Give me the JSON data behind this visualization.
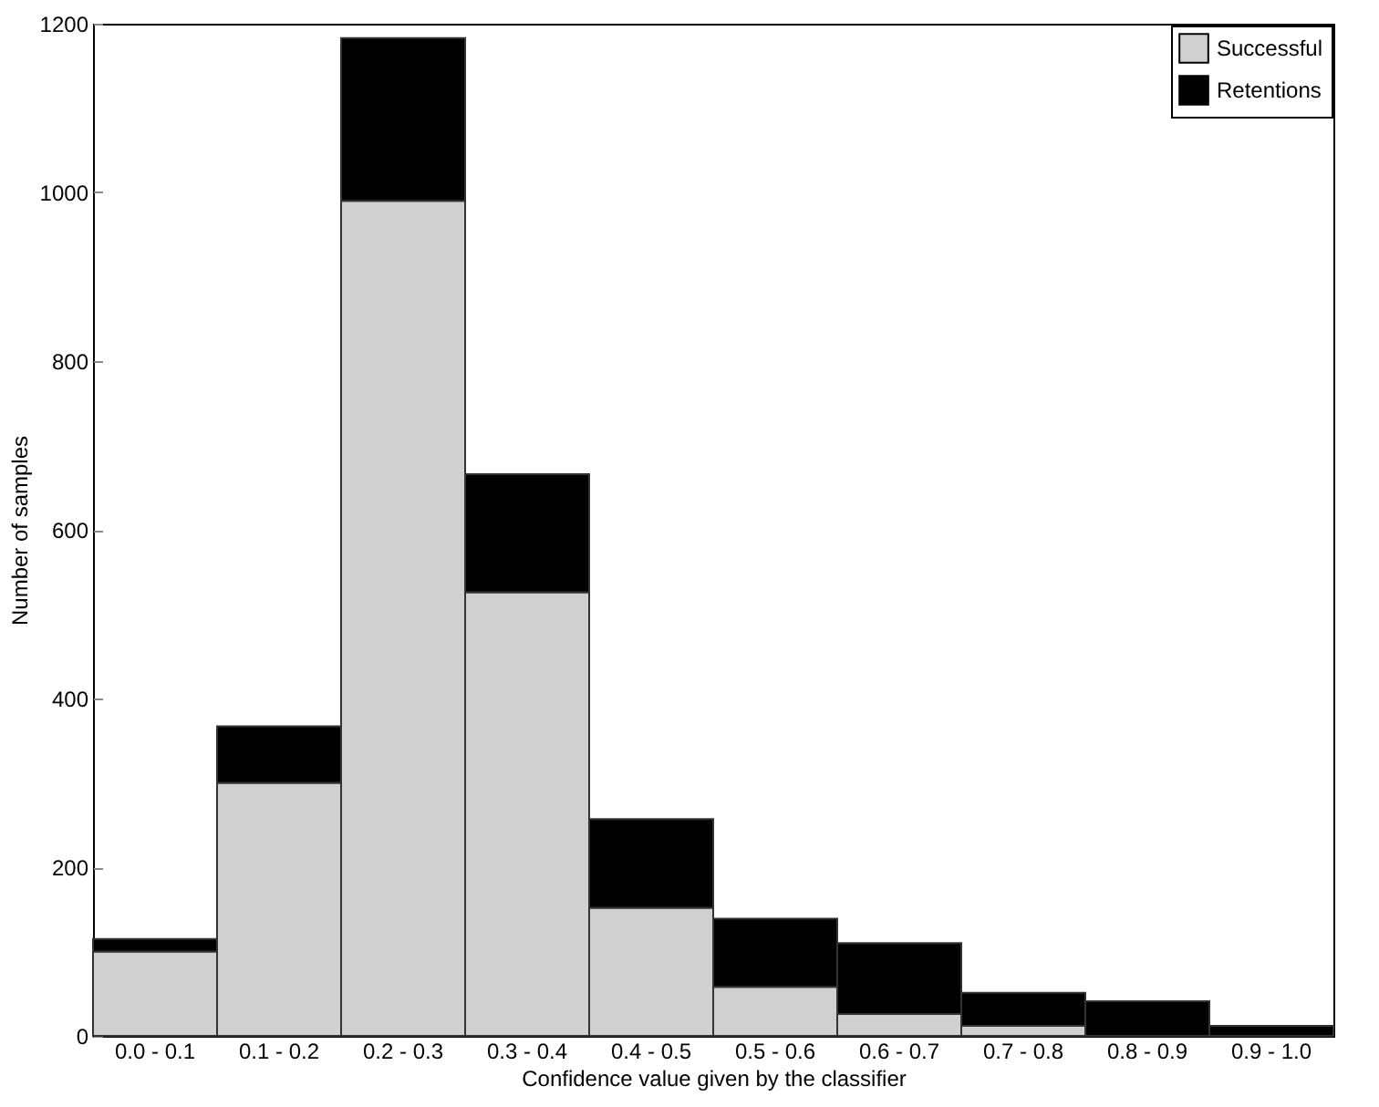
{
  "chart_data": {
    "type": "bar",
    "stacked": true,
    "xlabel": "Confidence value given by the classifier",
    "ylabel": "Number of samples",
    "categories": [
      "0.0 - 0.1",
      "0.1 - 0.2",
      "0.2 - 0.3",
      "0.3 - 0.4",
      "0.4 - 0.5",
      "0.5 - 0.6",
      "0.6 - 0.7",
      "0.7 - 0.8",
      "0.8 - 0.9",
      "0.9 - 1.0"
    ],
    "series": [
      {
        "name": "Successful",
        "color": "#d0d0d0",
        "values": [
          100,
          300,
          990,
          526,
          152,
          58,
          26,
          12,
          0,
          0
        ]
      },
      {
        "name": "Retentions",
        "color": "#000000",
        "values": [
          15,
          67,
          193,
          140,
          105,
          81,
          84,
          39,
          41,
          12
        ]
      }
    ],
    "ylim": [
      0,
      1200
    ],
    "yticks": [
      0,
      200,
      400,
      600,
      800,
      1000,
      1200
    ],
    "grid": false,
    "legend": "top right"
  }
}
